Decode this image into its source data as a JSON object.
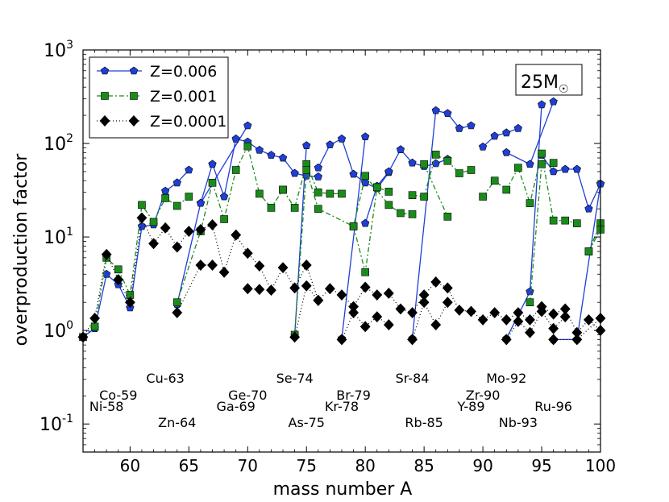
{
  "chart_data": {
    "type": "line",
    "xlabel": "mass number A",
    "ylabel": "overproduction factor",
    "xlim": [
      56,
      100
    ],
    "ylim_log10": [
      -1.3,
      3
    ],
    "yscale": "log",
    "x_ticks": [
      60,
      65,
      70,
      75,
      80,
      85,
      90,
      95,
      100
    ],
    "x_tick_labels": [
      "60",
      "65",
      "70",
      "75",
      "80",
      "85",
      "90",
      "95",
      "100"
    ],
    "y_ticks": [
      {
        "exp": -1,
        "label_base": "10",
        "label_exp": "-1"
      },
      {
        "exp": 0,
        "label_base": "10",
        "label_exp": "0"
      },
      {
        "exp": 1,
        "label_base": "10",
        "label_exp": "1"
      },
      {
        "exp": 2,
        "label_base": "10",
        "label_exp": "2"
      },
      {
        "exp": 3,
        "label_base": "10",
        "label_exp": "3"
      }
    ],
    "mass_label": {
      "main": "25M",
      "symbol": "☉"
    },
    "legend": {
      "position": "top-left"
    },
    "series": [
      {
        "name": "Z=0.006",
        "color": "#1f3fd6",
        "marker": "pentagon",
        "dash": "",
        "segments": [
          [
            [
              56,
              0.85
            ],
            [
              57,
              1.05
            ],
            [
              58,
              4.0
            ],
            [
              59,
              3.1
            ],
            [
              60,
              1.75
            ],
            [
              61,
              13.0
            ],
            [
              62,
              13.5
            ],
            [
              63,
              31.0
            ],
            [
              64,
              38.0
            ],
            [
              65,
              52.0
            ]
          ],
          [
            [
              64,
              1.9
            ],
            [
              66,
              23.0
            ],
            [
              67,
              60.0
            ],
            [
              68,
              27.0
            ],
            [
              69,
              112.0
            ],
            [
              70,
              104.0
            ],
            [
              71,
              85.0
            ],
            [
              72,
              75.0
            ],
            [
              73,
              70.0
            ],
            [
              74,
              48.0
            ],
            [
              75,
              45.0
            ],
            [
              76,
              44.0
            ]
          ],
          [
            [
              66,
              23.0
            ],
            [
              70,
              155.0
            ]
          ],
          [
            [
              74,
              0.88
            ],
            [
              75,
              95.0
            ]
          ],
          [
            [
              76,
              55.0
            ],
            [
              77,
              97.0
            ],
            [
              78,
              112.0
            ],
            [
              79,
              47.0
            ],
            [
              80,
              38.0
            ],
            [
              81,
              33.0
            ],
            [
              82,
              49.0
            ]
          ],
          [
            [
              80,
              14.0
            ],
            [
              81,
              35.0
            ],
            [
              82,
              50.0
            ],
            [
              83,
              86.0
            ],
            [
              84,
              62.0
            ],
            [
              85,
              57.0
            ],
            [
              86,
              61.0
            ],
            [
              87,
              68.0
            ]
          ],
          [
            [
              78,
              0.82
            ],
            [
              80,
              118.0
            ]
          ],
          [
            [
              84,
              0.82
            ],
            [
              86,
              225.0
            ],
            [
              87,
              210.0
            ],
            [
              88,
              145.0
            ],
            [
              89,
              155.0
            ]
          ],
          [
            [
              90,
              92.0
            ],
            [
              91,
              120.0
            ],
            [
              92,
              130.0
            ],
            [
              93,
              145.0
            ]
          ],
          [
            [
              92,
              0.82
            ],
            [
              94,
              2.6
            ],
            [
              95,
              260.0
            ]
          ],
          [
            [
              92,
              80.0
            ],
            [
              94,
              60.0
            ],
            [
              96,
              280.0
            ]
          ],
          [
            [
              95,
              75.0
            ],
            [
              96,
              50.0
            ],
            [
              97,
              53.0
            ],
            [
              98,
              53.0
            ],
            [
              99,
              20.0
            ],
            [
              100,
              37.0
            ]
          ],
          [
            [
              96,
              0.8
            ],
            [
              98,
              0.8
            ],
            [
              100,
              37.0
            ]
          ]
        ]
      },
      {
        "name": "Z=0.001",
        "color": "#1a8c1a",
        "marker": "square",
        "dash": "6,3,2,3",
        "segments": [
          [
            [
              56,
              0.85
            ],
            [
              57,
              1.1
            ],
            [
              58,
              6.0
            ],
            [
              59,
              4.5
            ],
            [
              60,
              2.4
            ],
            [
              61,
              22.0
            ],
            [
              62,
              14.5
            ],
            [
              63,
              26.0
            ],
            [
              64,
              21.5
            ],
            [
              65,
              27.0
            ]
          ],
          [
            [
              64,
              2.0
            ],
            [
              66,
              11.5
            ],
            [
              67,
              38.0
            ],
            [
              68,
              15.5
            ],
            [
              69,
              52.0
            ],
            [
              70,
              93.0
            ],
            [
              71,
              29.0
            ],
            [
              72,
              20.5
            ],
            [
              73,
              32.0
            ]
          ],
          [
            [
              73,
              32.0
            ],
            [
              74,
              20.5
            ],
            [
              75,
              60.0
            ],
            [
              76,
              30.0
            ],
            [
              77,
              29.0
            ],
            [
              78,
              29.0
            ]
          ],
          [
            [
              74,
              0.9
            ],
            [
              75,
              52.0
            ],
            [
              76,
              20.0
            ],
            [
              79,
              13.0
            ],
            [
              80,
              45.0
            ],
            [
              82,
              22.0
            ],
            [
              83,
              18.0
            ],
            [
              84,
              17.5
            ]
          ],
          [
            [
              79,
              13.0
            ],
            [
              80,
              4.2
            ],
            [
              81,
              34.0
            ],
            [
              82,
              30.5
            ]
          ],
          [
            [
              84,
              28.0
            ],
            [
              85,
              27.0
            ],
            [
              86,
              76.0
            ],
            [
              87,
              65.0
            ],
            [
              88,
              48.0
            ],
            [
              89,
              52.0
            ]
          ],
          [
            [
              85,
              60.0
            ],
            [
              87,
              16.5
            ]
          ],
          [
            [
              90,
              27.0
            ],
            [
              91,
              40.0
            ],
            [
              92,
              32.0
            ],
            [
              93,
              55.0
            ],
            [
              94,
              23.0
            ],
            [
              95,
              78.0
            ],
            [
              96,
              15.0
            ],
            [
              97,
              15.0
            ],
            [
              98,
              14.0
            ]
          ],
          [
            [
              94,
              2.0
            ],
            [
              95,
              60.0
            ],
            [
              96,
              62.0
            ]
          ],
          [
            [
              99,
              7.0
            ],
            [
              100,
              14.0
            ]
          ],
          [
            [
              99,
              7.0
            ],
            [
              100,
              12.0
            ]
          ]
        ]
      },
      {
        "name": "Z=0.0001",
        "color": "#000000",
        "marker": "diamond",
        "dash": "1,3",
        "segments": [
          [
            [
              56,
              0.85
            ],
            [
              57,
              1.35
            ],
            [
              58,
              6.5
            ],
            [
              59,
              3.5
            ],
            [
              60,
              2.0
            ],
            [
              61,
              16.0
            ],
            [
              62,
              8.5
            ],
            [
              63,
              12.5
            ],
            [
              64,
              7.8
            ],
            [
              65,
              11.5
            ],
            [
              66,
              12.0
            ],
            [
              67,
              13.5
            ],
            [
              68,
              4.2
            ],
            [
              69,
              10.5
            ],
            [
              70,
              6.7
            ],
            [
              71,
              4.9
            ],
            [
              72,
              2.7
            ],
            [
              73,
              4.7
            ],
            [
              74,
              2.85
            ],
            [
              75,
              5.0
            ],
            [
              76,
              2.1
            ],
            [
              77,
              2.8
            ],
            [
              78,
              2.4
            ],
            [
              79,
              1.8
            ],
            [
              80,
              2.9
            ],
            [
              81,
              2.4
            ],
            [
              82,
              2.5
            ],
            [
              83,
              1.7
            ],
            [
              84,
              1.55
            ],
            [
              85,
              2.4
            ],
            [
              86,
              3.3
            ],
            [
              87,
              2.85
            ],
            [
              88,
              1.65
            ],
            [
              89,
              1.6
            ],
            [
              90,
              1.3
            ],
            [
              91,
              1.55
            ],
            [
              92,
              1.3
            ],
            [
              93,
              1.55
            ],
            [
              94,
              1.3
            ],
            [
              95,
              1.8
            ],
            [
              96,
              1.5
            ],
            [
              97,
              1.7
            ],
            [
              98,
              0.95
            ],
            [
              99,
              1.3
            ],
            [
              100,
              1.0
            ]
          ],
          [
            [
              64,
              1.55
            ],
            [
              66,
              5.0
            ],
            [
              67,
              5.0
            ]
          ],
          [
            [
              70,
              2.8
            ],
            [
              71,
              2.75
            ]
          ],
          [
            [
              74,
              0.85
            ],
            [
              75,
              3.0
            ],
            [
              76,
              2.1
            ]
          ],
          [
            [
              78,
              0.8
            ],
            [
              79,
              1.55
            ],
            [
              80,
              1.1
            ],
            [
              81,
              1.4
            ],
            [
              82,
              1.15
            ]
          ],
          [
            [
              84,
              0.8
            ],
            [
              85,
              2.0
            ],
            [
              86,
              1.15
            ],
            [
              87,
              2.0
            ]
          ],
          [
            [
              92,
              0.8
            ],
            [
              93,
              1.25
            ],
            [
              94,
              0.95
            ],
            [
              95,
              1.6
            ],
            [
              96,
              1.05
            ],
            [
              97,
              1.4
            ]
          ],
          [
            [
              96,
              0.8
            ],
            [
              98,
              0.8
            ],
            [
              100,
              1.35
            ]
          ]
        ]
      }
    ]
  },
  "element_labels": [
    {
      "text": "Co-59",
      "x": 59,
      "row": 2
    },
    {
      "text": "Ni-58",
      "x": 58,
      "row": 3
    },
    {
      "text": "Cu-63",
      "x": 63,
      "row": 1
    },
    {
      "text": "Zn-64",
      "x": 64,
      "row": 4
    },
    {
      "text": "Ge-70",
      "x": 70,
      "row": 2
    },
    {
      "text": "Ga-69",
      "x": 69,
      "row": 3
    },
    {
      "text": "Se-74",
      "x": 74,
      "row": 1
    },
    {
      "text": "As-75",
      "x": 75,
      "row": 4
    },
    {
      "text": "Br-79",
      "x": 79,
      "row": 2
    },
    {
      "text": "Kr-78",
      "x": 78,
      "row": 3
    },
    {
      "text": "Sr-84",
      "x": 84,
      "row": 1
    },
    {
      "text": "Rb-85",
      "x": 85,
      "row": 4
    },
    {
      "text": "Mo-92",
      "x": 92,
      "row": 1
    },
    {
      "text": "Zr-90",
      "x": 90,
      "row": 2
    },
    {
      "text": "Y-89",
      "x": 89,
      "row": 3
    },
    {
      "text": "Ru-96",
      "x": 96,
      "row": 3
    },
    {
      "text": "Nb-93",
      "x": 93,
      "row": 4
    }
  ]
}
